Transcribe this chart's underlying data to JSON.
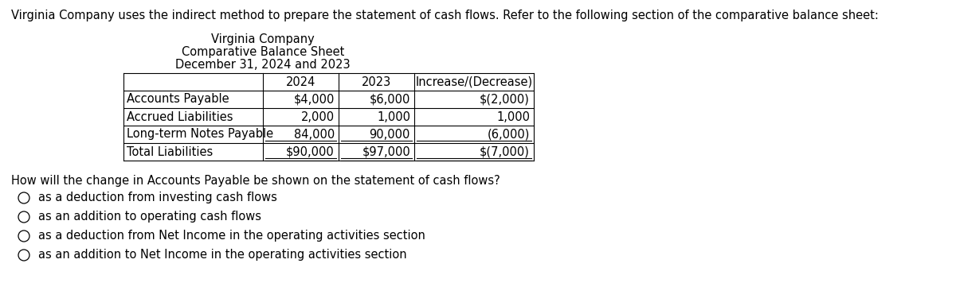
{
  "intro_text": "Virginia Company uses the indirect method to prepare the statement of cash flows. Refer to the following section of the comparative balance sheet:",
  "title_line1": "Virginia Company",
  "title_line2": "Comparative Balance Sheet",
  "title_line3": "December 31, 2024 and 2023",
  "col_headers": [
    "",
    "2024",
    "2023",
    "Increase/(Decrease)"
  ],
  "rows": [
    [
      "Accounts Payable",
      "$4,000",
      "$6,000",
      "$(2,000)"
    ],
    [
      "Accrued Liabilities",
      "2,000",
      "1,000",
      "1,000"
    ],
    [
      "Long-term Notes Payable",
      "84,000",
      "90,000",
      "(6,000)"
    ],
    [
      "Total Liabilities",
      "$90,000",
      "$97,000",
      "$(7,000)"
    ]
  ],
  "underline_rows": [
    2,
    3
  ],
  "double_underline_rows": [
    3
  ],
  "question_text": "How will the change in Accounts Payable be shown on the statement of cash flows?",
  "options": [
    "as a deduction from investing cash flows",
    "as an addition to operating cash flows",
    "as a deduction from Net Income in the operating activities section",
    "as an addition to Net Income in the operating activities section"
  ],
  "bg_color": "#ffffff",
  "text_color": "#000000",
  "font_size": 10.5,
  "table_font_size": 10.5,
  "intro_font_size": 10.5
}
